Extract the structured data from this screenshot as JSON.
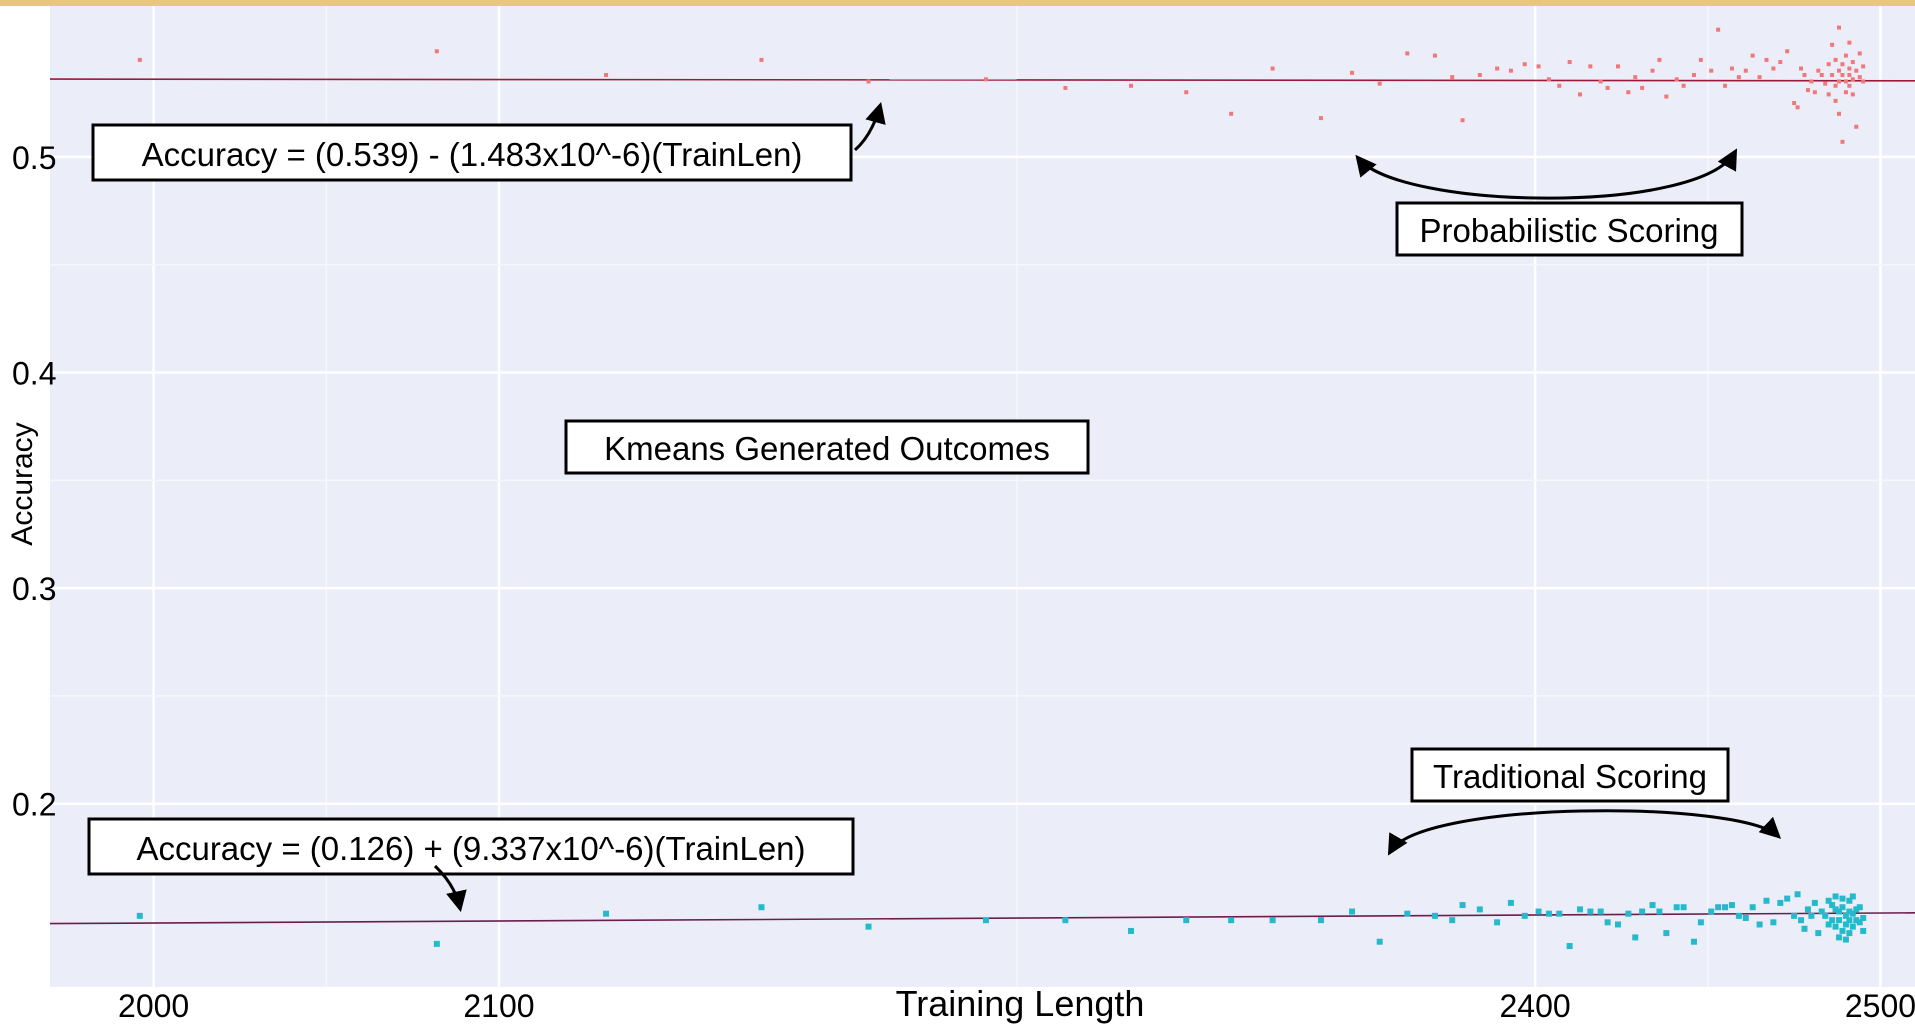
{
  "chart_data": {
    "type": "scatter",
    "xlabel": "Training Length",
    "ylabel": "Accuracy",
    "xticks": [
      2000,
      2100,
      2400,
      2500
    ],
    "yticks": [
      0.2,
      0.3,
      0.4,
      0.5
    ],
    "xlim": [
      1970,
      2510
    ],
    "ylim": [
      0.115,
      0.57
    ],
    "grid": true,
    "series": [
      {
        "name": "Probabilistic Scoring",
        "color": "#f07878",
        "points": [
          [
            1996,
            0.545
          ],
          [
            2082,
            0.549
          ],
          [
            2131,
            0.538
          ],
          [
            2176,
            0.545
          ],
          [
            2207,
            0.535
          ],
          [
            2241,
            0.536
          ],
          [
            2264,
            0.532
          ],
          [
            2283,
            0.533
          ],
          [
            2299,
            0.53
          ],
          [
            2312,
            0.52
          ],
          [
            2324,
            0.541
          ],
          [
            2338,
            0.518
          ],
          [
            2347,
            0.539
          ],
          [
            2355,
            0.534
          ],
          [
            2363,
            0.548
          ],
          [
            2371,
            0.547
          ],
          [
            2376,
            0.537
          ],
          [
            2379,
            0.517
          ],
          [
            2384,
            0.538
          ],
          [
            2389,
            0.541
          ],
          [
            2393,
            0.54
          ],
          [
            2397,
            0.543
          ],
          [
            2401,
            0.542
          ],
          [
            2404,
            0.536
          ],
          [
            2407,
            0.533
          ],
          [
            2410,
            0.544
          ],
          [
            2413,
            0.529
          ],
          [
            2416,
            0.542
          ],
          [
            2419,
            0.535
          ],
          [
            2421,
            0.532
          ],
          [
            2424,
            0.542
          ],
          [
            2427,
            0.53
          ],
          [
            2429,
            0.537
          ],
          [
            2431,
            0.532
          ],
          [
            2434,
            0.54
          ],
          [
            2436,
            0.545
          ],
          [
            2438,
            0.528
          ],
          [
            2441,
            0.536
          ],
          [
            2443,
            0.533
          ],
          [
            2446,
            0.538
          ],
          [
            2448,
            0.545
          ],
          [
            2451,
            0.54
          ],
          [
            2453,
            0.559
          ],
          [
            2455,
            0.533
          ],
          [
            2457,
            0.541
          ],
          [
            2459,
            0.537
          ],
          [
            2461,
            0.54
          ],
          [
            2463,
            0.547
          ],
          [
            2465,
            0.537
          ],
          [
            2467,
            0.545
          ],
          [
            2469,
            0.541
          ],
          [
            2471,
            0.544
          ],
          [
            2473,
            0.549
          ],
          [
            2475,
            0.525
          ],
          [
            2476,
            0.523
          ],
          [
            2477,
            0.541
          ],
          [
            2478,
            0.538
          ],
          [
            2479,
            0.531
          ],
          [
            2480,
            0.535
          ],
          [
            2481,
            0.53
          ],
          [
            2482,
            0.54
          ],
          [
            2483,
            0.538
          ],
          [
            2484,
            0.534
          ],
          [
            2485,
            0.543
          ],
          [
            2485,
            0.529
          ],
          [
            2486,
            0.538
          ],
          [
            2486,
            0.552
          ],
          [
            2487,
            0.533
          ],
          [
            2487,
            0.526
          ],
          [
            2487,
            0.545
          ],
          [
            2488,
            0.54
          ],
          [
            2488,
            0.535
          ],
          [
            2488,
            0.56
          ],
          [
            2488,
            0.52
          ],
          [
            2489,
            0.538
          ],
          [
            2489,
            0.543
          ],
          [
            2489,
            0.507
          ],
          [
            2490,
            0.535
          ],
          [
            2490,
            0.53
          ],
          [
            2490,
            0.547
          ],
          [
            2491,
            0.538
          ],
          [
            2491,
            0.541
          ],
          [
            2491,
            0.553
          ],
          [
            2491,
            0.533
          ],
          [
            2492,
            0.536
          ],
          [
            2492,
            0.544
          ],
          [
            2492,
            0.529
          ],
          [
            2493,
            0.54
          ],
          [
            2493,
            0.514
          ],
          [
            2494,
            0.537
          ],
          [
            2494,
            0.548
          ],
          [
            2495,
            0.535
          ],
          [
            2495,
            0.542
          ]
        ]
      },
      {
        "name": "Traditional Scoring",
        "color": "#25b9cc",
        "points": [
          [
            1996,
            0.148
          ],
          [
            2082,
            0.135
          ],
          [
            2131,
            0.149
          ],
          [
            2176,
            0.152
          ],
          [
            2207,
            0.143
          ],
          [
            2241,
            0.146
          ],
          [
            2264,
            0.146
          ],
          [
            2283,
            0.141
          ],
          [
            2299,
            0.146
          ],
          [
            2312,
            0.146
          ],
          [
            2324,
            0.146
          ],
          [
            2338,
            0.146
          ],
          [
            2347,
            0.15
          ],
          [
            2355,
            0.136
          ],
          [
            2363,
            0.149
          ],
          [
            2371,
            0.148
          ],
          [
            2376,
            0.146
          ],
          [
            2379,
            0.153
          ],
          [
            2384,
            0.151
          ],
          [
            2389,
            0.145
          ],
          [
            2393,
            0.154
          ],
          [
            2397,
            0.148
          ],
          [
            2401,
            0.15
          ],
          [
            2404,
            0.149
          ],
          [
            2407,
            0.149
          ],
          [
            2410,
            0.134
          ],
          [
            2413,
            0.151
          ],
          [
            2416,
            0.15
          ],
          [
            2419,
            0.15
          ],
          [
            2421,
            0.145
          ],
          [
            2424,
            0.144
          ],
          [
            2427,
            0.149
          ],
          [
            2429,
            0.138
          ],
          [
            2431,
            0.15
          ],
          [
            2434,
            0.153
          ],
          [
            2436,
            0.15
          ],
          [
            2438,
            0.14
          ],
          [
            2441,
            0.152
          ],
          [
            2443,
            0.152
          ],
          [
            2446,
            0.136
          ],
          [
            2448,
            0.145
          ],
          [
            2451,
            0.15
          ],
          [
            2453,
            0.152
          ],
          [
            2455,
            0.152
          ],
          [
            2457,
            0.153
          ],
          [
            2459,
            0.148
          ],
          [
            2461,
            0.147
          ],
          [
            2463,
            0.152
          ],
          [
            2465,
            0.144
          ],
          [
            2467,
            0.155
          ],
          [
            2469,
            0.145
          ],
          [
            2471,
            0.154
          ],
          [
            2473,
            0.156
          ],
          [
            2475,
            0.148
          ],
          [
            2476,
            0.158
          ],
          [
            2477,
            0.146
          ],
          [
            2478,
            0.142
          ],
          [
            2479,
            0.151
          ],
          [
            2480,
            0.148
          ],
          [
            2481,
            0.154
          ],
          [
            2482,
            0.14
          ],
          [
            2483,
            0.15
          ],
          [
            2484,
            0.148
          ],
          [
            2485,
            0.155
          ],
          [
            2485,
            0.144
          ],
          [
            2486,
            0.153
          ],
          [
            2486,
            0.146
          ],
          [
            2487,
            0.143
          ],
          [
            2487,
            0.151
          ],
          [
            2487,
            0.157
          ],
          [
            2488,
            0.15
          ],
          [
            2488,
            0.138
          ],
          [
            2488,
            0.146
          ],
          [
            2489,
            0.152
          ],
          [
            2489,
            0.141
          ],
          [
            2489,
            0.156
          ],
          [
            2490,
            0.148
          ],
          [
            2490,
            0.137
          ],
          [
            2490,
            0.144
          ],
          [
            2491,
            0.15
          ],
          [
            2491,
            0.146
          ],
          [
            2491,
            0.155
          ],
          [
            2491,
            0.14
          ],
          [
            2492,
            0.149
          ],
          [
            2492,
            0.143
          ],
          [
            2492,
            0.157
          ],
          [
            2493,
            0.146
          ],
          [
            2493,
            0.151
          ],
          [
            2494,
            0.145
          ],
          [
            2494,
            0.152
          ],
          [
            2495,
            0.147
          ],
          [
            2495,
            0.141
          ]
        ]
      }
    ],
    "trendlines": [
      {
        "name": "probabilistic-fit",
        "color": "#9a1a3a",
        "x": [
          1970,
          2510
        ],
        "y": [
          0.5361,
          0.5353
        ]
      },
      {
        "name": "traditional-fit",
        "color": "#6a1e4e",
        "x": [
          1970,
          2510
        ],
        "y": [
          0.1444,
          0.1494
        ]
      }
    ],
    "annotations": [
      "Accuracy = (0.539) - (1.483x10^-6)(TrainLen)",
      "Probabilistic Scoring",
      "Kmeans Generated Outcomes",
      "Traditional Scoring",
      "Accuracy = (0.126) + (9.337x10^-6)(TrainLen)"
    ]
  }
}
